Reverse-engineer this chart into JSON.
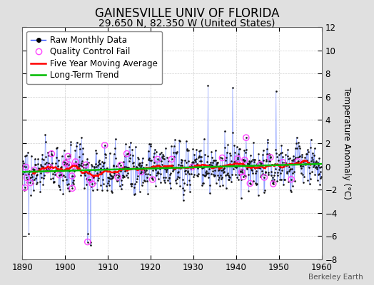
{
  "title": "GAINESVILLE UNIV OF FLORIDA",
  "subtitle": "29.650 N, 82.350 W (United States)",
  "ylabel": "Temperature Anomaly (°C)",
  "watermark": "Berkeley Earth",
  "xlim": [
    1890,
    1960
  ],
  "ylim": [
    -8,
    12
  ],
  "yticks": [
    -8,
    -6,
    -4,
    -2,
    0,
    2,
    4,
    6,
    8,
    10,
    12
  ],
  "xticks": [
    1890,
    1900,
    1910,
    1920,
    1930,
    1940,
    1950,
    1960
  ],
  "bg_color": "#e0e0e0",
  "plot_bg_color": "#ffffff",
  "grid_color": "#bbbbbb",
  "line_color": "#3355ff",
  "line_alpha": 0.55,
  "dot_color": "#111111",
  "qc_color": "#ff44ff",
  "moving_avg_color": "#ff0000",
  "trend_color": "#00bb00",
  "title_fontsize": 12,
  "subtitle_fontsize": 10,
  "legend_fontsize": 8.5
}
